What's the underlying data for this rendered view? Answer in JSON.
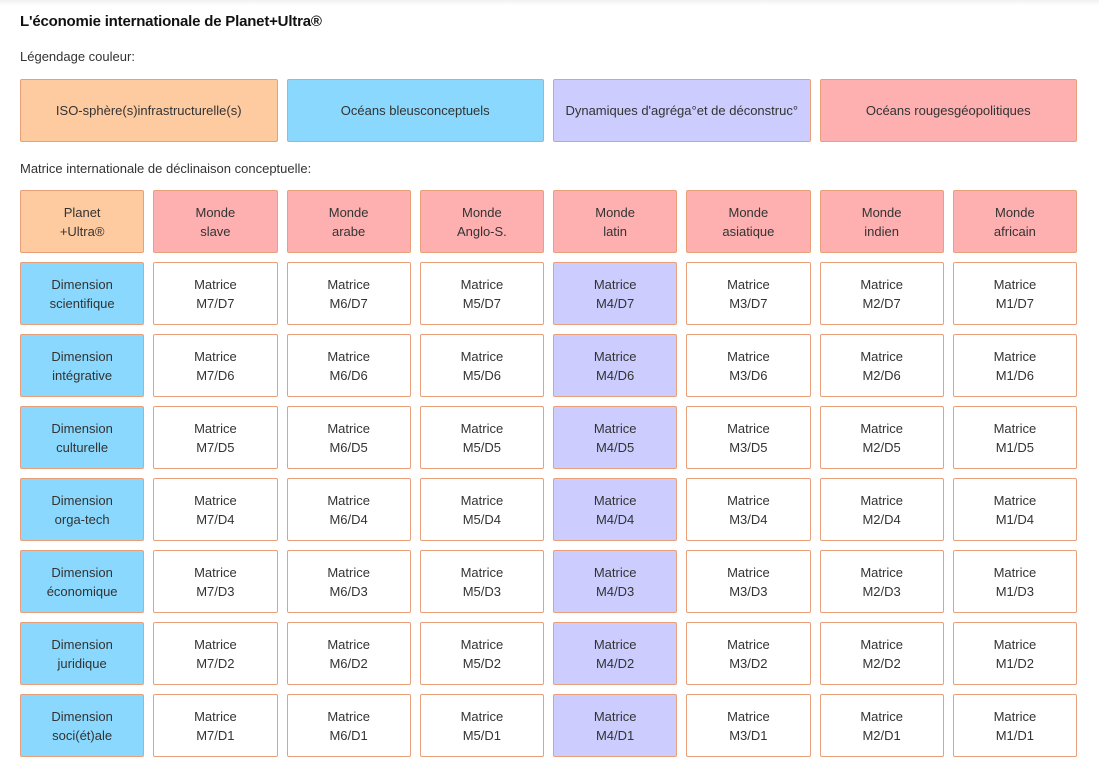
{
  "title": "L'économie internationale de Planet+Ultra®",
  "legend_label": "Légendage couleur:",
  "matrix_label": "Matrice internationale de déclinaison conceptuelle:",
  "colors": {
    "orange": "#fecba1",
    "blue": "#8ad8fd",
    "purple": "#ccccfe",
    "red": "#feb0b0",
    "white": "#ffffff",
    "border": "#e9a07a"
  },
  "legend": [
    {
      "line1": "ISO-sphère(s)",
      "line2": "infrastructurelle(s)",
      "color": "orange"
    },
    {
      "line1": "Océans bleus",
      "line2": "conceptuels",
      "color": "blue"
    },
    {
      "line1": "Dynamiques d'agréga°",
      "line2": "et de déconstruc°",
      "color": "purple"
    },
    {
      "line1": "Océans rouges",
      "line2": "géopolitiques",
      "color": "red"
    }
  ],
  "header": [
    {
      "line1": "Planet",
      "line2": "+Ultra®",
      "color": "orange"
    },
    {
      "line1": "Monde",
      "line2": "slave",
      "color": "red"
    },
    {
      "line1": "Monde",
      "line2": "arabe",
      "color": "red"
    },
    {
      "line1": "Monde",
      "line2": "Anglo-S.",
      "color": "red"
    },
    {
      "line1": "Monde",
      "line2": "latin",
      "color": "red"
    },
    {
      "line1": "Monde",
      "line2": "asiatique",
      "color": "red"
    },
    {
      "line1": "Monde",
      "line2": "indien",
      "color": "red"
    },
    {
      "line1": "Monde",
      "line2": "africain",
      "color": "red"
    }
  ],
  "rows": [
    {
      "dimension": {
        "line1": "Dimension",
        "line2": "scientifique"
      },
      "cells": [
        {
          "line1": "Matrice",
          "line2": "M7/D7",
          "color": "white"
        },
        {
          "line1": "Matrice",
          "line2": "M6/D7",
          "color": "white"
        },
        {
          "line1": "Matrice",
          "line2": "M5/D7",
          "color": "white"
        },
        {
          "line1": "Matrice",
          "line2": "M4/D7",
          "color": "purple"
        },
        {
          "line1": "Matrice",
          "line2": "M3/D7",
          "color": "white"
        },
        {
          "line1": "Matrice",
          "line2": "M2/D7",
          "color": "white"
        },
        {
          "line1": "Matrice",
          "line2": "M1/D7",
          "color": "white"
        }
      ]
    },
    {
      "dimension": {
        "line1": "Dimension",
        "line2": "intégrative"
      },
      "cells": [
        {
          "line1": "Matrice",
          "line2": "M7/D6",
          "color": "white"
        },
        {
          "line1": "Matrice",
          "line2": "M6/D6",
          "color": "white"
        },
        {
          "line1": "Matrice",
          "line2": "M5/D6",
          "color": "white"
        },
        {
          "line1": "Matrice",
          "line2": "M4/D6",
          "color": "purple"
        },
        {
          "line1": "Matrice",
          "line2": "M3/D6",
          "color": "white"
        },
        {
          "line1": "Matrice",
          "line2": "M2/D6",
          "color": "white"
        },
        {
          "line1": "Matrice",
          "line2": "M1/D6",
          "color": "white"
        }
      ]
    },
    {
      "dimension": {
        "line1": "Dimension",
        "line2": "culturelle"
      },
      "cells": [
        {
          "line1": "Matrice",
          "line2": "M7/D5",
          "color": "white"
        },
        {
          "line1": "Matrice",
          "line2": "M6/D5",
          "color": "white"
        },
        {
          "line1": "Matrice",
          "line2": "M5/D5",
          "color": "white"
        },
        {
          "line1": "Matrice",
          "line2": "M4/D5",
          "color": "purple"
        },
        {
          "line1": "Matrice",
          "line2": "M3/D5",
          "color": "white"
        },
        {
          "line1": "Matrice",
          "line2": "M2/D5",
          "color": "white"
        },
        {
          "line1": "Matrice",
          "line2": "M1/D5",
          "color": "white"
        }
      ]
    },
    {
      "dimension": {
        "line1": "Dimension",
        "line2": "orga-tech"
      },
      "cells": [
        {
          "line1": "Matrice",
          "line2": "M7/D4",
          "color": "white"
        },
        {
          "line1": "Matrice",
          "line2": "M6/D4",
          "color": "white"
        },
        {
          "line1": "Matrice",
          "line2": "M5/D4",
          "color": "white"
        },
        {
          "line1": "Matrice",
          "line2": "M4/D4",
          "color": "purple"
        },
        {
          "line1": "Matrice",
          "line2": "M3/D4",
          "color": "white"
        },
        {
          "line1": "Matrice",
          "line2": "M2/D4",
          "color": "white"
        },
        {
          "line1": "Matrice",
          "line2": "M1/D4",
          "color": "white"
        }
      ]
    },
    {
      "dimension": {
        "line1": "Dimension",
        "line2": "économique"
      },
      "cells": [
        {
          "line1": "Matrice",
          "line2": "M7/D3",
          "color": "white"
        },
        {
          "line1": "Matrice",
          "line2": "M6/D3",
          "color": "white"
        },
        {
          "line1": "Matrice",
          "line2": "M5/D3",
          "color": "white"
        },
        {
          "line1": "Matrice",
          "line2": "M4/D3",
          "color": "purple"
        },
        {
          "line1": "Matrice",
          "line2": "M3/D3",
          "color": "white"
        },
        {
          "line1": "Matrice",
          "line2": "M2/D3",
          "color": "white"
        },
        {
          "line1": "Matrice",
          "line2": "M1/D3",
          "color": "white"
        }
      ]
    },
    {
      "dimension": {
        "line1": "Dimension",
        "line2": "juridique"
      },
      "cells": [
        {
          "line1": "Matrice",
          "line2": "M7/D2",
          "color": "white"
        },
        {
          "line1": "Matrice",
          "line2": "M6/D2",
          "color": "white"
        },
        {
          "line1": "Matrice",
          "line2": "M5/D2",
          "color": "white"
        },
        {
          "line1": "Matrice",
          "line2": "M4/D2",
          "color": "purple"
        },
        {
          "line1": "Matrice",
          "line2": "M3/D2",
          "color": "white"
        },
        {
          "line1": "Matrice",
          "line2": "M2/D2",
          "color": "white"
        },
        {
          "line1": "Matrice",
          "line2": "M1/D2",
          "color": "white"
        }
      ]
    },
    {
      "dimension": {
        "line1": "Dimension",
        "line2": "soci(ét)ale"
      },
      "cells": [
        {
          "line1": "Matrice",
          "line2": "M7/D1",
          "color": "white"
        },
        {
          "line1": "Matrice",
          "line2": "M6/D1",
          "color": "white"
        },
        {
          "line1": "Matrice",
          "line2": "M5/D1",
          "color": "white"
        },
        {
          "line1": "Matrice",
          "line2": "M4/D1",
          "color": "purple"
        },
        {
          "line1": "Matrice",
          "line2": "M3/D1",
          "color": "white"
        },
        {
          "line1": "Matrice",
          "line2": "M2/D1",
          "color": "white"
        },
        {
          "line1": "Matrice",
          "line2": "M1/D1",
          "color": "white"
        }
      ]
    }
  ]
}
